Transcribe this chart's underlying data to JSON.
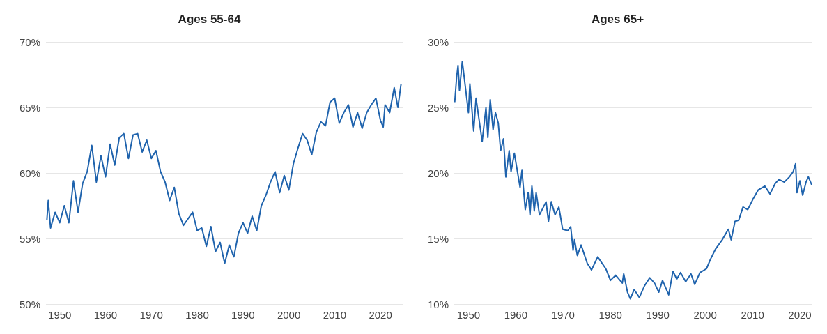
{
  "chart_data": [
    {
      "type": "line",
      "title": "Ages 55-64",
      "xlim": [
        1947,
        2025
      ],
      "xticks": [
        1950,
        1960,
        1970,
        1980,
        1990,
        2000,
        2010,
        2020
      ],
      "ylim": [
        50,
        70
      ],
      "yticks": [
        {
          "value": 50,
          "label": "50%"
        },
        {
          "value": 55,
          "label": "55%"
        },
        {
          "value": 60,
          "label": "60%"
        },
        {
          "value": 65,
          "label": "65%"
        },
        {
          "value": 70,
          "label": "70%"
        }
      ],
      "grid": "y",
      "marker": "none",
      "line_style": "solid",
      "series": [
        {
          "color": "#1f63ad",
          "x": [
            1947.2,
            1947.5,
            1948,
            1949,
            1950,
            1951,
            1952,
            1953,
            1954,
            1955,
            1956,
            1957,
            1958,
            1959,
            1960,
            1961,
            1962,
            1963,
            1964,
            1965,
            1966,
            1967,
            1968,
            1969,
            1970,
            1971,
            1972,
            1973,
            1974,
            1975,
            1976,
            1977,
            1978,
            1979,
            1980,
            1981,
            1982,
            1983,
            1984,
            1985,
            1986,
            1987,
            1988,
            1989,
            1990,
            1991,
            1992,
            1993,
            1994,
            1995,
            1996,
            1997,
            1998,
            1999,
            2000,
            2001,
            2002,
            2003,
            2004,
            2005,
            2006,
            2007,
            2008,
            2009,
            2010,
            2011,
            2012,
            2013,
            2014,
            2015,
            2016,
            2017,
            2018,
            2019,
            2020,
            2020.6,
            2021,
            2022,
            2023,
            2023.8,
            2024.5
          ],
          "values": [
            56.4,
            57.9,
            55.8,
            57.0,
            56.2,
            57.5,
            56.2,
            59.4,
            57.0,
            59.2,
            60.1,
            62.1,
            59.3,
            61.3,
            59.7,
            62.2,
            60.6,
            62.7,
            63.0,
            61.1,
            62.9,
            63.0,
            61.6,
            62.5,
            61.1,
            61.7,
            60.1,
            59.3,
            57.9,
            58.9,
            56.9,
            56.0,
            56.5,
            57.0,
            55.6,
            55.8,
            54.4,
            55.9,
            54.0,
            54.7,
            53.1,
            54.5,
            53.6,
            55.4,
            56.2,
            55.4,
            56.7,
            55.6,
            57.5,
            58.3,
            59.3,
            60.1,
            58.5,
            59.8,
            58.7,
            60.7,
            61.9,
            63.0,
            62.5,
            61.4,
            63.1,
            63.9,
            63.6,
            65.4,
            65.7,
            63.8,
            64.6,
            65.2,
            63.5,
            64.6,
            63.4,
            64.6,
            65.2,
            65.7,
            64.0,
            63.5,
            65.2,
            64.6,
            66.5,
            65.0,
            66.8
          ]
        }
      ]
    },
    {
      "type": "line",
      "title": "Ages 65+",
      "xlim": [
        1947,
        2022.5
      ],
      "xticks": [
        1950,
        1960,
        1970,
        1980,
        1990,
        2000,
        2010,
        2020
      ],
      "ylim": [
        10,
        30
      ],
      "yticks": [
        {
          "value": 10,
          "label": "10%"
        },
        {
          "value": 15,
          "label": "15%"
        },
        {
          "value": 20,
          "label": "20%"
        },
        {
          "value": 25,
          "label": "25%"
        },
        {
          "value": 30,
          "label": "30%"
        }
      ],
      "grid": "y",
      "marker": "none",
      "line_style": "solid",
      "series": [
        {
          "color": "#1f63ad",
          "x": [
            1947.1,
            1947.5,
            1947.8,
            1948.1,
            1948.7,
            1949.2,
            1950,
            1950.3,
            1951.1,
            1951.6,
            1952.9,
            1953.7,
            1954.1,
            1954.6,
            1955.2,
            1955.7,
            1956.3,
            1956.8,
            1957.4,
            1957.9,
            1958.6,
            1959,
            1959.7,
            1960.9,
            1961.3,
            1962,
            1962.6,
            1963,
            1963.4,
            1963.9,
            1964.3,
            1965,
            1966.4,
            1966.9,
            1967.5,
            1968.3,
            1969.1,
            1969.9,
            1971,
            1971.6,
            1972.1,
            1972.4,
            1973,
            1973.8,
            1975.1,
            1976,
            1977.3,
            1979,
            1980,
            1981.1,
            1982.5,
            1982.8,
            1983.6,
            1984.2,
            1985,
            1986.1,
            1987.2,
            1988.3,
            1989.3,
            1990.2,
            1991,
            1992.3,
            1993.2,
            1994,
            1994.8,
            1995.9,
            1997,
            1997.8,
            1998.9,
            2000.3,
            2001.1,
            2002.2,
            2003.6,
            2004.9,
            2005.5,
            2006.3,
            2007.1,
            2008,
            2009,
            2010.1,
            2011.2,
            2012.6,
            2013.7,
            2014.8,
            2015.6,
            2016.7,
            2017.8,
            2018.6,
            2019.1,
            2019.4,
            2020,
            2020.6,
            2021.3,
            2021.8,
            2022.5
          ],
          "values": [
            25.4,
            27.3,
            28.2,
            26.3,
            28.5,
            27.0,
            24.6,
            26.8,
            23.2,
            25.7,
            22.4,
            25.0,
            22.7,
            25.6,
            23.3,
            24.6,
            23.8,
            21.7,
            22.6,
            19.7,
            21.7,
            20.1,
            21.5,
            18.9,
            20.2,
            17.2,
            18.5,
            16.8,
            19.0,
            17.1,
            18.5,
            16.8,
            17.8,
            16.3,
            17.8,
            16.8,
            17.4,
            15.7,
            15.6,
            15.9,
            14.1,
            14.9,
            13.7,
            14.5,
            13.1,
            12.6,
            13.6,
            12.7,
            11.8,
            12.2,
            11.6,
            12.3,
            10.9,
            10.4,
            11.1,
            10.5,
            11.4,
            12.0,
            11.6,
            10.9,
            11.8,
            10.7,
            12.5,
            11.9,
            12.4,
            11.7,
            12.3,
            11.5,
            12.4,
            12.7,
            13.4,
            14.2,
            14.9,
            15.7,
            14.9,
            16.3,
            16.4,
            17.4,
            17.2,
            18.0,
            18.7,
            19.0,
            18.4,
            19.2,
            19.5,
            19.3,
            19.7,
            20.1,
            20.7,
            18.5,
            19.4,
            18.3,
            19.3,
            19.7,
            19.1
          ]
        }
      ]
    }
  ]
}
